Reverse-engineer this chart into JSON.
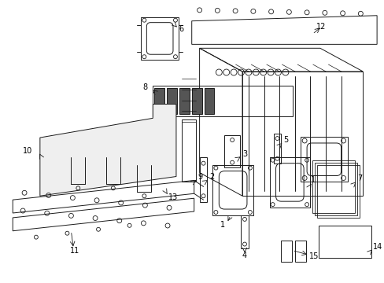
{
  "bg_color": "#ffffff",
  "lc": "#1a1a1a",
  "lw": 0.7,
  "fig_w": 4.89,
  "fig_h": 3.6,
  "dpi": 100,
  "fs": 7.0
}
